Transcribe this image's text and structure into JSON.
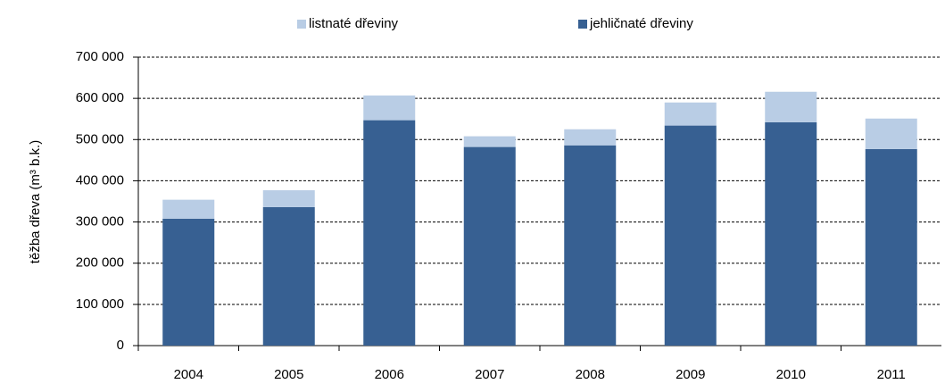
{
  "chart_data": {
    "type": "stacked_bar",
    "y_label": "těžba dřeva (m³ b.k.)",
    "categories": [
      "2004",
      "2005",
      "2006",
      "2007",
      "2008",
      "2009",
      "2010",
      "2011"
    ],
    "series": [
      {
        "name": "listnaté dřeviny",
        "color": "#b9cde5",
        "values": [
          46000,
          41000,
          60000,
          26000,
          39000,
          56000,
          74000,
          74000
        ]
      },
      {
        "name": "jehličnaté dřeviny",
        "color": "#376092",
        "values": [
          308000,
          336000,
          547000,
          482000,
          486000,
          534000,
          542000,
          477000
        ]
      }
    ],
    "ylim": [
      0,
      700000
    ],
    "yticks": [
      0,
      {
        "value": 100000,
        "label": "100 000"
      },
      {
        "value": 200000,
        "label": "200 000"
      },
      {
        "value": 300000,
        "label": "300 000"
      },
      {
        "value": 400000,
        "label": "400 000"
      },
      {
        "value": 500000,
        "label": "500 000"
      },
      {
        "value": 600000,
        "label": "600 000"
      },
      {
        "value": 700000,
        "label": "700 000"
      }
    ],
    "grid": true,
    "legend": "top"
  }
}
